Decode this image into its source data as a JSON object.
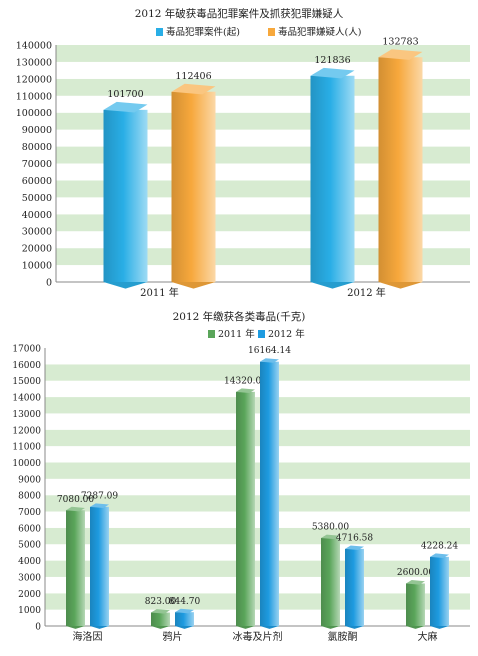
{
  "chart_data": [
    {
      "type": "bar",
      "title": "2012 年破获毒品犯罪案件及抓获犯罪嫌疑人",
      "categories": [
        "2011 年",
        "2012 年"
      ],
      "series": [
        {
          "name": "毒品犯罪案件(起)",
          "values": [
            101700,
            121836
          ],
          "color": "#29aee6"
        },
        {
          "name": "毒品犯罪嫌疑人(人)",
          "values": [
            112406,
            132783
          ],
          "color": "#f7a83c"
        }
      ],
      "ylim": [
        0,
        140000
      ],
      "yticks": [
        "0",
        "10000",
        "20000",
        "30000",
        "40000",
        "50000",
        "60000",
        "70000",
        "80000",
        "90000",
        "100000",
        "110000",
        "120000",
        "130000",
        "140000"
      ],
      "data_labels": [
        [
          "101700",
          "121836"
        ],
        [
          "112406",
          "132783"
        ]
      ],
      "legend": "top-center",
      "grid": "horizontal bands"
    },
    {
      "type": "bar",
      "title": "2012 年缴获各类毒品(千克)",
      "categories": [
        "海洛因",
        "鸦片",
        "冰毒及片剂",
        "氯胺酮",
        "大麻"
      ],
      "series": [
        {
          "name": "2011 年",
          "values": [
            7080.0,
            823.0,
            14320.0,
            5380.0,
            2600.0
          ],
          "color": "#5aa55a"
        },
        {
          "name": "2012 年",
          "values": [
            7287.09,
            844.7,
            16164.14,
            4716.58,
            4228.24
          ],
          "color": "#1e9be0"
        }
      ],
      "ylim": [
        0,
        17000
      ],
      "yticks": [
        "0",
        "1000",
        "2000",
        "3000",
        "4000",
        "5000",
        "6000",
        "7000",
        "8000",
        "9000",
        "10000",
        "11000",
        "12000",
        "13000",
        "14000",
        "15000",
        "16000",
        "17000"
      ],
      "data_labels": [
        [
          "7080.00",
          "823.00",
          "14320.00",
          "5380.00",
          "2600.00"
        ],
        [
          "7287.09",
          "844.70",
          "16164.14",
          "4716.58",
          "4228.24"
        ]
      ],
      "legend": "top-center",
      "grid": "horizontal bands"
    }
  ]
}
